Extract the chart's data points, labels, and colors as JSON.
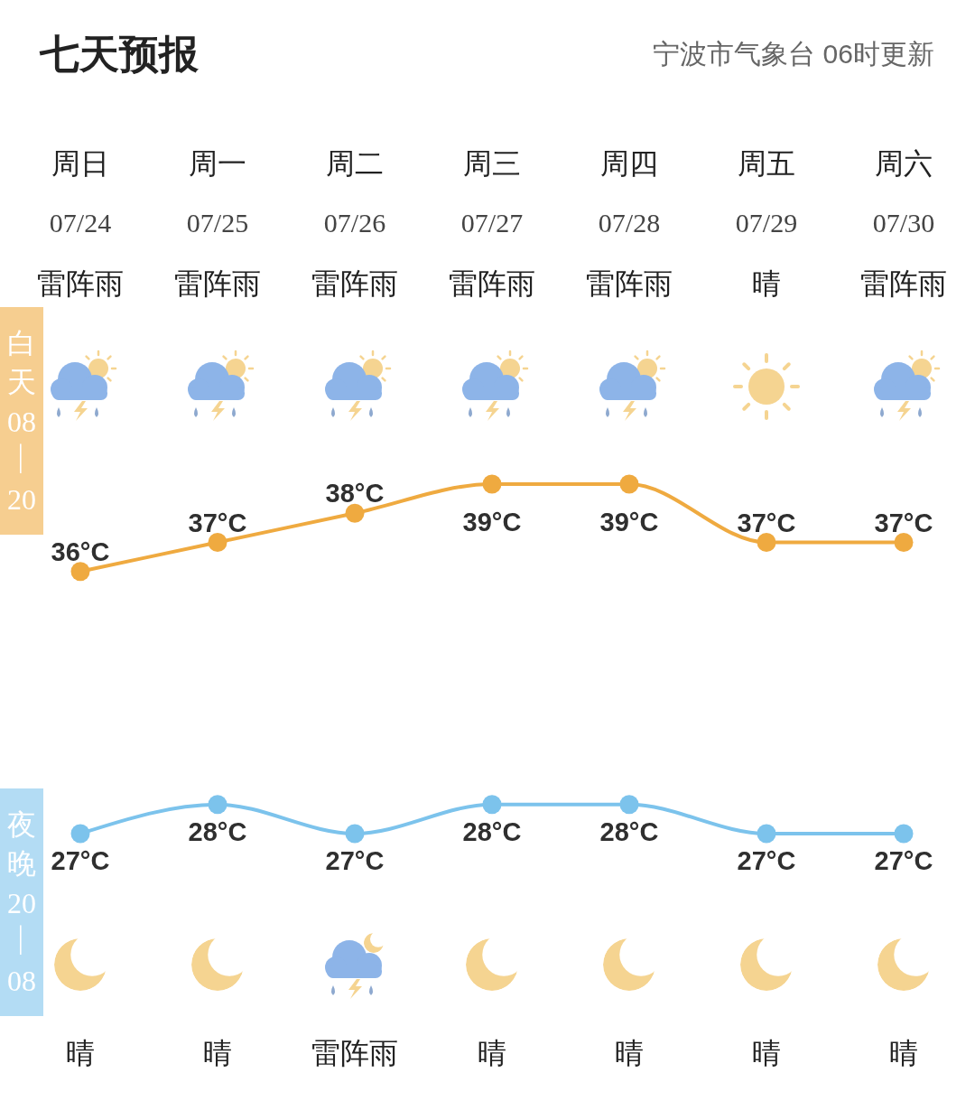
{
  "chart_data": {
    "type": "line",
    "title": "七天预报",
    "subtitle": "宁波市气象台 06时更新",
    "categories": [
      "07/24",
      "07/25",
      "07/26",
      "07/27",
      "07/28",
      "07/29",
      "07/30"
    ],
    "series": [
      {
        "name": "白天08—20",
        "color": "#efaa40",
        "values": [
          36,
          37,
          38,
          39,
          39,
          37,
          37
        ],
        "value_labels": [
          "36°C",
          "37°C",
          "38°C",
          "39°C",
          "39°C",
          "37°C",
          "37°C"
        ]
      },
      {
        "name": "夜晚20—08",
        "color": "#7cc3ec",
        "values": [
          27,
          28,
          27,
          28,
          28,
          27,
          27
        ],
        "value_labels": [
          "27°C",
          "28°C",
          "27°C",
          "28°C",
          "28°C",
          "27°C",
          "27°C"
        ]
      }
    ],
    "annotations": [
      "周日",
      "周一",
      "周二",
      "周三",
      "周四",
      "周五",
      "周六",
      "雷阵雨",
      "雷阵雨",
      "雷阵雨",
      "雷阵雨",
      "雷阵雨",
      "晴",
      "雷阵雨",
      "晴",
      "晴",
      "雷阵雨",
      "晴",
      "晴",
      "晴",
      "晴"
    ],
    "marker": "circle",
    "line_style": "solid",
    "tick_labels": "x"
  }
}
